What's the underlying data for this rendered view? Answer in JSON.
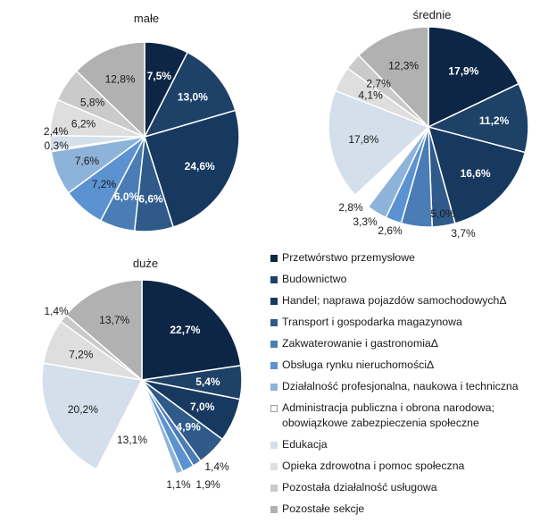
{
  "chart_data": {
    "type": "pie",
    "categories": [
      "Przetwórstwo przemysłowe",
      "Budownictwo",
      "Handel; naprawa pojazdów samochodowychΔ",
      "Transport i gospodarka magazynowa",
      "Zakwaterowanie i gastronomiaΔ",
      "Obsługa rynku nieruchomościΔ",
      "Działalność profesjonalna, naukowa i techniczna",
      "Administracja publiczna i obrona narodowa; obowiązkowe zabezpieczenia społeczne",
      "Edukacja",
      "Opieka zdrowotna i pomoc społeczna",
      "Pozostała działalność usługowa",
      "Pozostałe sekcje"
    ],
    "colors": [
      "#0d2645",
      "#1e4168",
      "#17395f",
      "#2f5a8a",
      "#4a7cb6",
      "#5b92d2",
      "#8eb3da",
      "#ffffff",
      "#d3dfea",
      "#dedede",
      "#cacaca",
      "#b1b1b1"
    ],
    "series": [
      {
        "name": "małe",
        "values": [
          7.5,
          13.0,
          24.6,
          6.6,
          6.0,
          7.2,
          7.6,
          0.3,
          2.4,
          6.2,
          5.8,
          12.8
        ],
        "labels": [
          "7,5%",
          "13,0%",
          "24,6%",
          "6,6%",
          "6,0%",
          "7,2%",
          "7,6%",
          "0,3%",
          "2,4%",
          "6,2%",
          "5,8%",
          "12,8%"
        ]
      },
      {
        "name": "średnie",
        "values": [
          17.9,
          11.2,
          16.6,
          3.7,
          5.0,
          2.6,
          3.3,
          2.8,
          17.8,
          4.1,
          2.7,
          12.3
        ],
        "labels": [
          "17,9%",
          "11,2%",
          "16,6%",
          "3,7%",
          "5,0%",
          "2,6%",
          "3,3%",
          "2,8%",
          "17,8%",
          "4,1%",
          "2,7%",
          "12,3%"
        ]
      },
      {
        "name": "duże",
        "values": [
          22.7,
          5.4,
          7.0,
          4.9,
          1.4,
          1.9,
          1.1,
          13.1,
          20.2,
          7.2,
          1.4,
          13.7
        ],
        "labels": [
          "22,7%",
          "5,4%",
          "7,0%",
          "4,9%",
          "1,4%",
          "1,9%",
          "1,1%",
          "13,1%",
          "20,2%",
          "7,2%",
          "1,4%",
          "13,7%"
        ]
      }
    ],
    "legend_position": "bottom-right"
  }
}
